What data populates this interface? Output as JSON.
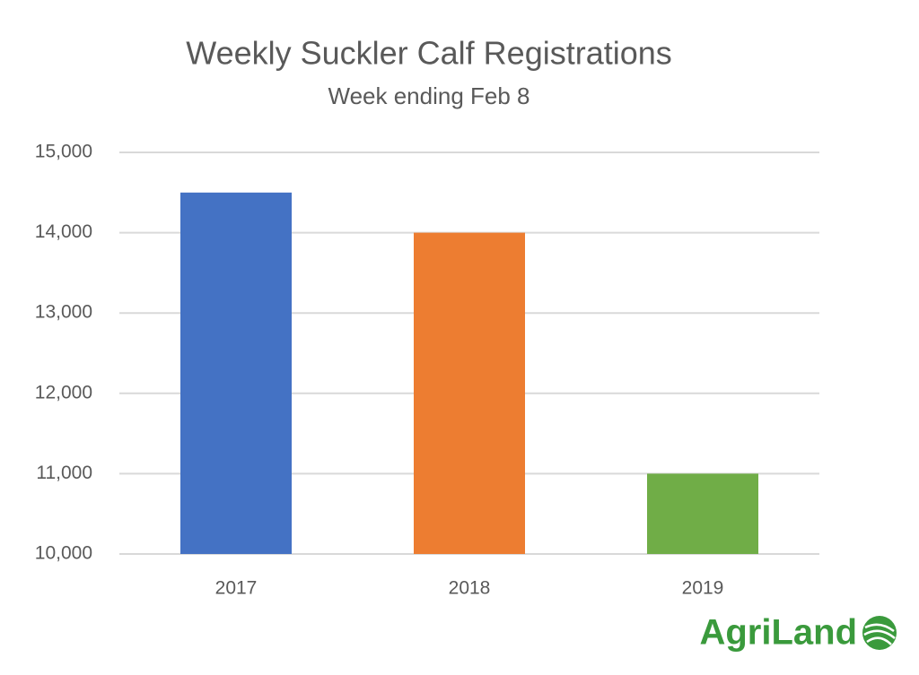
{
  "chart_data": {
    "type": "bar",
    "title": "Weekly Suckler Calf Registrations",
    "subtitle": "Week ending Feb 8",
    "categories": [
      "2017",
      "2018",
      "2019"
    ],
    "values": [
      14500,
      14000,
      11000
    ],
    "colors": [
      "#4472c4",
      "#ed7d31",
      "#70ad47"
    ],
    "ylim": [
      10000,
      15000
    ],
    "yticks": [
      {
        "value": 10000,
        "label": "10,000"
      },
      {
        "value": 11000,
        "label": "11,000"
      },
      {
        "value": 12000,
        "label": "12,000"
      },
      {
        "value": 13000,
        "label": "13,000"
      },
      {
        "value": 14000,
        "label": "14,000"
      },
      {
        "value": 15000,
        "label": "15,000"
      }
    ],
    "grid": true,
    "logo": "AgriLand"
  }
}
